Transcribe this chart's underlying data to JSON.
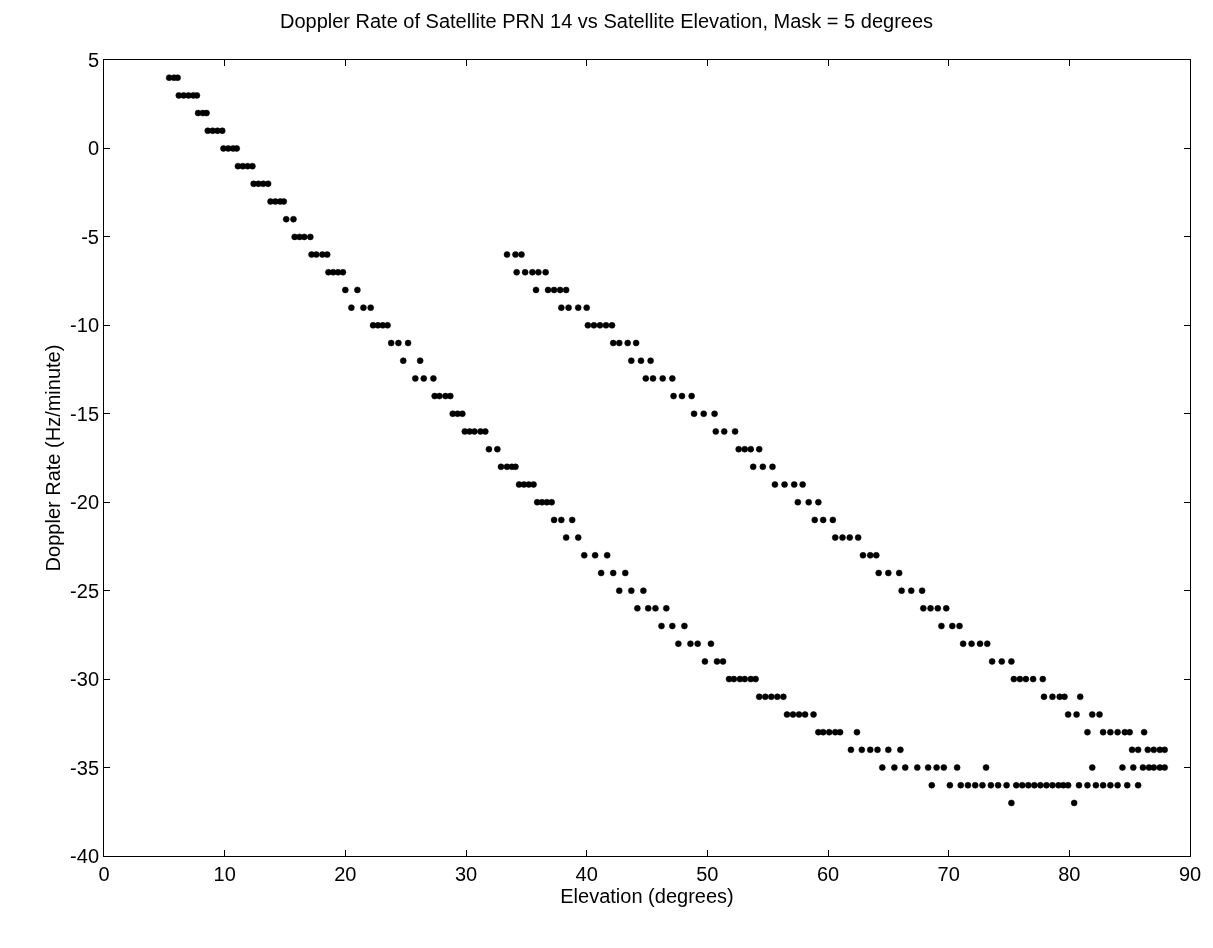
{
  "chart_data": {
    "type": "scatter",
    "title": "Doppler Rate of Satellite PRN 14 vs Satellite Elevation, Mask = 5 degrees",
    "xlabel": "Elevation (degrees)",
    "ylabel": "Doppler Rate (Hz/minute)",
    "series": [
      {
        "color": "#000000",
        "x": [
          5.4,
          5.8,
          6.1,
          6.2,
          6.6,
          7.0,
          7.4,
          7.7,
          7.8,
          8.2,
          8.5,
          8.6,
          9.0,
          9.4,
          9.8,
          9.9,
          10.3,
          10.7,
          11.0,
          11.1,
          11.5,
          11.9,
          12.3,
          12.4,
          12.8,
          13.2,
          13.6,
          13.8,
          14.2,
          14.6,
          14.9,
          15.1,
          15.7,
          15.8,
          16.2,
          16.6,
          17.1,
          17.2,
          17.6,
          18.1,
          18.5,
          33.4,
          34.1,
          34.6,
          18.6,
          19.0,
          19.4,
          19.8,
          34.2,
          34.9,
          35.5,
          36.0,
          36.6,
          20.0,
          21.0,
          35.8,
          36.8,
          37.3,
          37.8,
          38.3,
          20.5,
          21.5,
          22.1,
          37.9,
          38.5,
          39.3,
          40.0,
          22.3,
          22.7,
          23.1,
          23.5,
          40.1,
          40.6,
          41.1,
          41.6,
          42.1,
          23.8,
          24.4,
          25.2,
          42.2,
          42.7,
          43.4,
          44.1,
          24.8,
          26.2,
          43.7,
          44.5,
          45.3,
          25.8,
          26.5,
          27.3,
          44.9,
          45.5,
          46.3,
          47.1,
          27.4,
          27.8,
          28.3,
          28.7,
          47.2,
          47.9,
          48.7,
          28.9,
          29.3,
          29.7,
          48.9,
          49.7,
          50.6,
          29.9,
          30.3,
          30.7,
          31.2,
          31.6,
          50.7,
          51.4,
          52.3,
          31.9,
          32.6,
          52.6,
          53.1,
          53.6,
          54.3,
          32.9,
          33.4,
          33.8,
          34.1,
          53.8,
          54.6,
          55.4,
          34.4,
          34.8,
          35.2,
          35.6,
          55.6,
          56.4,
          57.2,
          57.9,
          35.9,
          36.3,
          36.7,
          37.1,
          57.5,
          58.4,
          59.2,
          37.3,
          37.9,
          38.8,
          58.9,
          59.6,
          60.4,
          38.3,
          39.3,
          60.6,
          61.2,
          61.8,
          62.5,
          39.8,
          40.7,
          41.7,
          62.9,
          63.5,
          64.0,
          41.2,
          42.2,
          43.2,
          64.2,
          65.0,
          65.9,
          42.7,
          43.7,
          44.7,
          66.1,
          66.9,
          67.8,
          44.2,
          45.1,
          45.7,
          46.6,
          67.9,
          68.5,
          69.1,
          69.8,
          46.2,
          47.1,
          48.1,
          69.4,
          70.3,
          70.9,
          47.6,
          48.6,
          49.2,
          50.3,
          71.2,
          71.9,
          72.6,
          73.2,
          49.8,
          50.8,
          51.3,
          73.6,
          74.4,
          75.2,
          51.8,
          52.2,
          52.7,
          53.1,
          53.6,
          54.0,
          75.4,
          75.9,
          76.4,
          77.0,
          77.8,
          54.3,
          54.8,
          55.3,
          55.8,
          56.3,
          77.9,
          78.6,
          79.2,
          79.6,
          80.9,
          56.6,
          57.1,
          57.6,
          58.1,
          58.8,
          79.9,
          80.6,
          81.9,
          82.5,
          59.2,
          59.6,
          60.1,
          60.6,
          61.0,
          62.4,
          81.5,
          82.8,
          83.4,
          84.0,
          84.6,
          85.0,
          86.2,
          61.9,
          62.8,
          63.5,
          64.1,
          65.0,
          66.0,
          85.2,
          85.7,
          86.5,
          87.0,
          87.5,
          87.9,
          64.5,
          65.5,
          66.4,
          67.4,
          68.3,
          69.0,
          69.6,
          70.7,
          73.1,
          81.9,
          84.4,
          85.3,
          86.1,
          86.6,
          87.0,
          87.5,
          87.9,
          68.6,
          70.1,
          71.0,
          71.6,
          72.2,
          72.8,
          73.5,
          74.1,
          74.8,
          75.6,
          76.1,
          76.6,
          77.1,
          77.6,
          78.1,
          78.6,
          79.1,
          79.5,
          79.9,
          80.8,
          81.5,
          82.2,
          82.8,
          83.4,
          84.0,
          84.8,
          85.7,
          75.2,
          80.4
        ],
        "values": [
          4,
          4,
          4,
          3,
          3,
          3,
          3,
          3,
          2,
          2,
          2,
          1,
          1,
          1,
          1,
          0,
          0,
          0,
          0,
          -1,
          -1,
          -1,
          -1,
          -2,
          -2,
          -2,
          -2,
          -3,
          -3,
          -3,
          -3,
          -4,
          -4,
          -5,
          -5,
          -5,
          -5,
          -6,
          -6,
          -6,
          -6,
          -6,
          -6,
          -6,
          -7,
          -7,
          -7,
          -7,
          -7,
          -7,
          -7,
          -7,
          -7,
          -8,
          -8,
          -8,
          -8,
          -8,
          -8,
          -8,
          -9,
          -9,
          -9,
          -9,
          -9,
          -9,
          -9,
          -10,
          -10,
          -10,
          -10,
          -10,
          -10,
          -10,
          -10,
          -10,
          -11,
          -11,
          -11,
          -11,
          -11,
          -11,
          -11,
          -12,
          -12,
          -12,
          -12,
          -12,
          -13,
          -13,
          -13,
          -13,
          -13,
          -13,
          -13,
          -14,
          -14,
          -14,
          -14,
          -14,
          -14,
          -14,
          -15,
          -15,
          -15,
          -15,
          -15,
          -15,
          -16,
          -16,
          -16,
          -16,
          -16,
          -16,
          -16,
          -16,
          -17,
          -17,
          -17,
          -17,
          -17,
          -17,
          -18,
          -18,
          -18,
          -18,
          -18,
          -18,
          -18,
          -19,
          -19,
          -19,
          -19,
          -19,
          -19,
          -19,
          -19,
          -20,
          -20,
          -20,
          -20,
          -20,
          -20,
          -20,
          -21,
          -21,
          -21,
          -21,
          -21,
          -21,
          -22,
          -22,
          -22,
          -22,
          -22,
          -22,
          -23,
          -23,
          -23,
          -23,
          -23,
          -23,
          -24,
          -24,
          -24,
          -24,
          -24,
          -24,
          -25,
          -25,
          -25,
          -25,
          -25,
          -25,
          -26,
          -26,
          -26,
          -26,
          -26,
          -26,
          -26,
          -26,
          -27,
          -27,
          -27,
          -27,
          -27,
          -27,
          -28,
          -28,
          -28,
          -28,
          -28,
          -28,
          -28,
          -28,
          -29,
          -29,
          -29,
          -29,
          -29,
          -29,
          -30,
          -30,
          -30,
          -30,
          -30,
          -30,
          -30,
          -30,
          -30,
          -30,
          -30,
          -31,
          -31,
          -31,
          -31,
          -31,
          -31,
          -31,
          -31,
          -31,
          -31,
          -32,
          -32,
          -32,
          -32,
          -32,
          -32,
          -32,
          -32,
          -32,
          -33,
          -33,
          -33,
          -33,
          -33,
          -33,
          -33,
          -33,
          -33,
          -33,
          -33,
          -33,
          -33,
          -34,
          -34,
          -34,
          -34,
          -34,
          -34,
          -34,
          -34,
          -34,
          -34,
          -34,
          -34,
          -35,
          -35,
          -35,
          -35,
          -35,
          -35,
          -35,
          -35,
          -35,
          -35,
          -35,
          -35,
          -35,
          -35,
          -35,
          -35,
          -35,
          -36,
          -36,
          -36,
          -36,
          -36,
          -36,
          -36,
          -36,
          -36,
          -36,
          -36,
          -36,
          -36,
          -36,
          -36,
          -36,
          -36,
          -36,
          -36,
          -36,
          -36,
          -36,
          -36,
          -36,
          -36,
          -36,
          -36,
          -37,
          -37
        ]
      }
    ],
    "xlim": [
      0,
      90
    ],
    "xticks": [
      0,
      10,
      20,
      30,
      40,
      50,
      60,
      70,
      80,
      90
    ],
    "ylim": [
      -40,
      5
    ],
    "yticks": [
      -40,
      -35,
      -30,
      -25,
      -20,
      -15,
      -10,
      -5,
      0,
      5
    ],
    "marker": "circle"
  }
}
